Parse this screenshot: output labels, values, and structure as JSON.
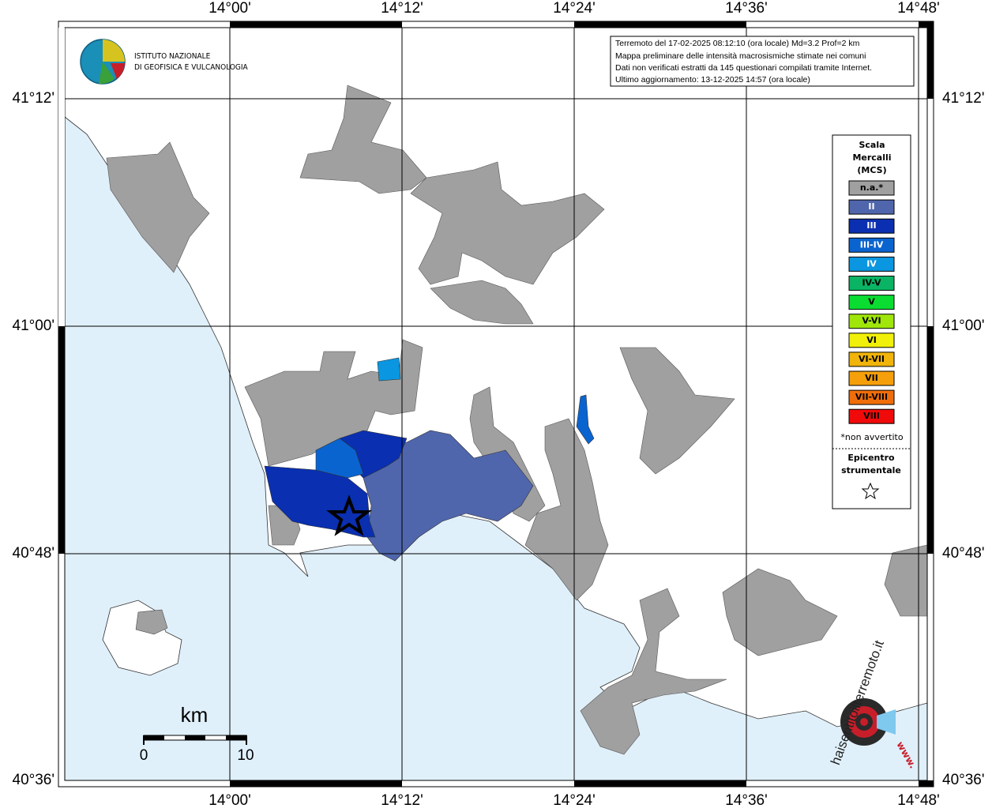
{
  "header": {
    "lines": [
      "Terremoto del 17-02-2025 08:12:10 (ora locale) Md=3.2 Prof=2 km",
      "Mappa preliminare delle intensità macrosismiche stimate nei comuni",
      "Dati non verificati estratti da 145 questionari compilati tramite Internet.",
      "Ultimo aggiornamento: 13-12-2025 14:57 (ora locale)"
    ]
  },
  "logo": {
    "lines": [
      "ISTITUTO NAZIONALE",
      "DI GEOFISICA E VULCANOLOGIA"
    ]
  },
  "site_logo": {
    "text": "haisentitoilterremoto.it",
    "www": "www."
  },
  "grid": {
    "lon_labels": [
      "14°00'",
      "14°12'",
      "14°24'",
      "14°36'",
      "14°48'"
    ],
    "lat_labels": [
      "41°12'",
      "41°00'",
      "40°48'",
      "40°36'"
    ]
  },
  "legend": {
    "title": [
      "Scala",
      "Mercalli",
      "(MCS)"
    ],
    "items": [
      {
        "label": "n.a.*",
        "color": "#a0a0a0"
      },
      {
        "label": "II",
        "color": "#4f66ac"
      },
      {
        "label": "III",
        "color": "#0a2fb0"
      },
      {
        "label": "III-IV",
        "color": "#0a64d0"
      },
      {
        "label": "IV",
        "color": "#0a96e0"
      },
      {
        "label": "IV-V",
        "color": "#0ab464"
      },
      {
        "label": "V",
        "color": "#0adc32"
      },
      {
        "label": "V-VI",
        "color": "#a0e60a"
      },
      {
        "label": "VI",
        "color": "#f0f00a"
      },
      {
        "label": "VI-VII",
        "color": "#f0b40a"
      },
      {
        "label": "VII",
        "color": "#f5a00a"
      },
      {
        "label": "VII-VIII",
        "color": "#f06e0a"
      },
      {
        "label": "VIII",
        "color": "#f00a0a"
      }
    ],
    "note": "*non avvertito",
    "epicenter": [
      "Epicentro",
      "strumentale"
    ]
  },
  "scale_bar": {
    "unit": "km",
    "labels": [
      0,
      10
    ]
  }
}
